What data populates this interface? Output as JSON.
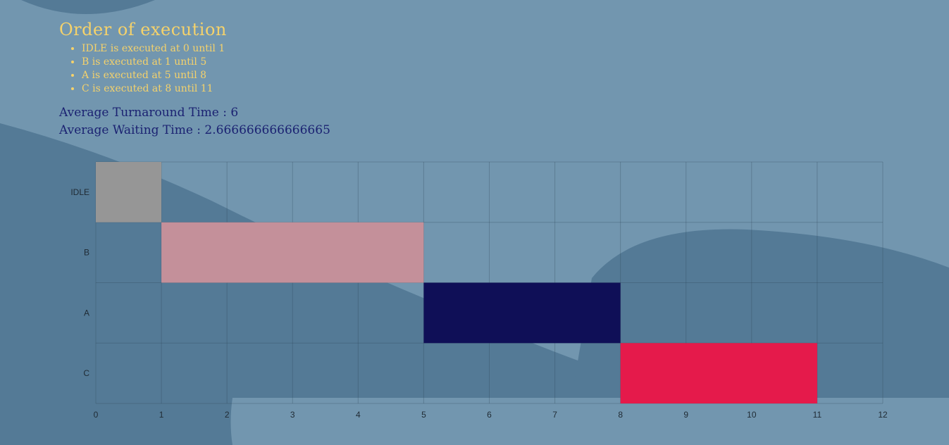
{
  "heading": "Order of execution",
  "order_items": [
    "IDLE is executed at 0 until 1",
    "B is executed at 1 until 5",
    "A is executed at 5 until 8",
    "C is executed at 8 until 11"
  ],
  "stats": {
    "turnaround": "Average Turnaround Time : 6",
    "waiting": "Average Waiting Time : 2.666666666666665"
  },
  "chart_data": {
    "type": "bar",
    "orientation": "horizontal-gantt",
    "title": "",
    "xlabel": "",
    "ylabel": "",
    "categories": [
      "IDLE",
      "B",
      "A",
      "C"
    ],
    "xlim": [
      0,
      12
    ],
    "xticks": [
      0,
      1,
      2,
      3,
      4,
      5,
      6,
      7,
      8,
      9,
      10,
      11,
      12
    ],
    "grid": true,
    "bars": [
      {
        "category": "IDLE",
        "start": 0,
        "end": 1,
        "color": "#969696"
      },
      {
        "category": "B",
        "start": 1,
        "end": 5,
        "color": "#c4909a"
      },
      {
        "category": "A",
        "start": 5,
        "end": 8,
        "color": "#0f0f57"
      },
      {
        "category": "C",
        "start": 8,
        "end": 11,
        "color": "#e51a4b"
      }
    ]
  },
  "colors": {
    "background": "#7296af",
    "shape": "#547a96",
    "heading": "#f5d26b",
    "stats": "#1b2272"
  }
}
